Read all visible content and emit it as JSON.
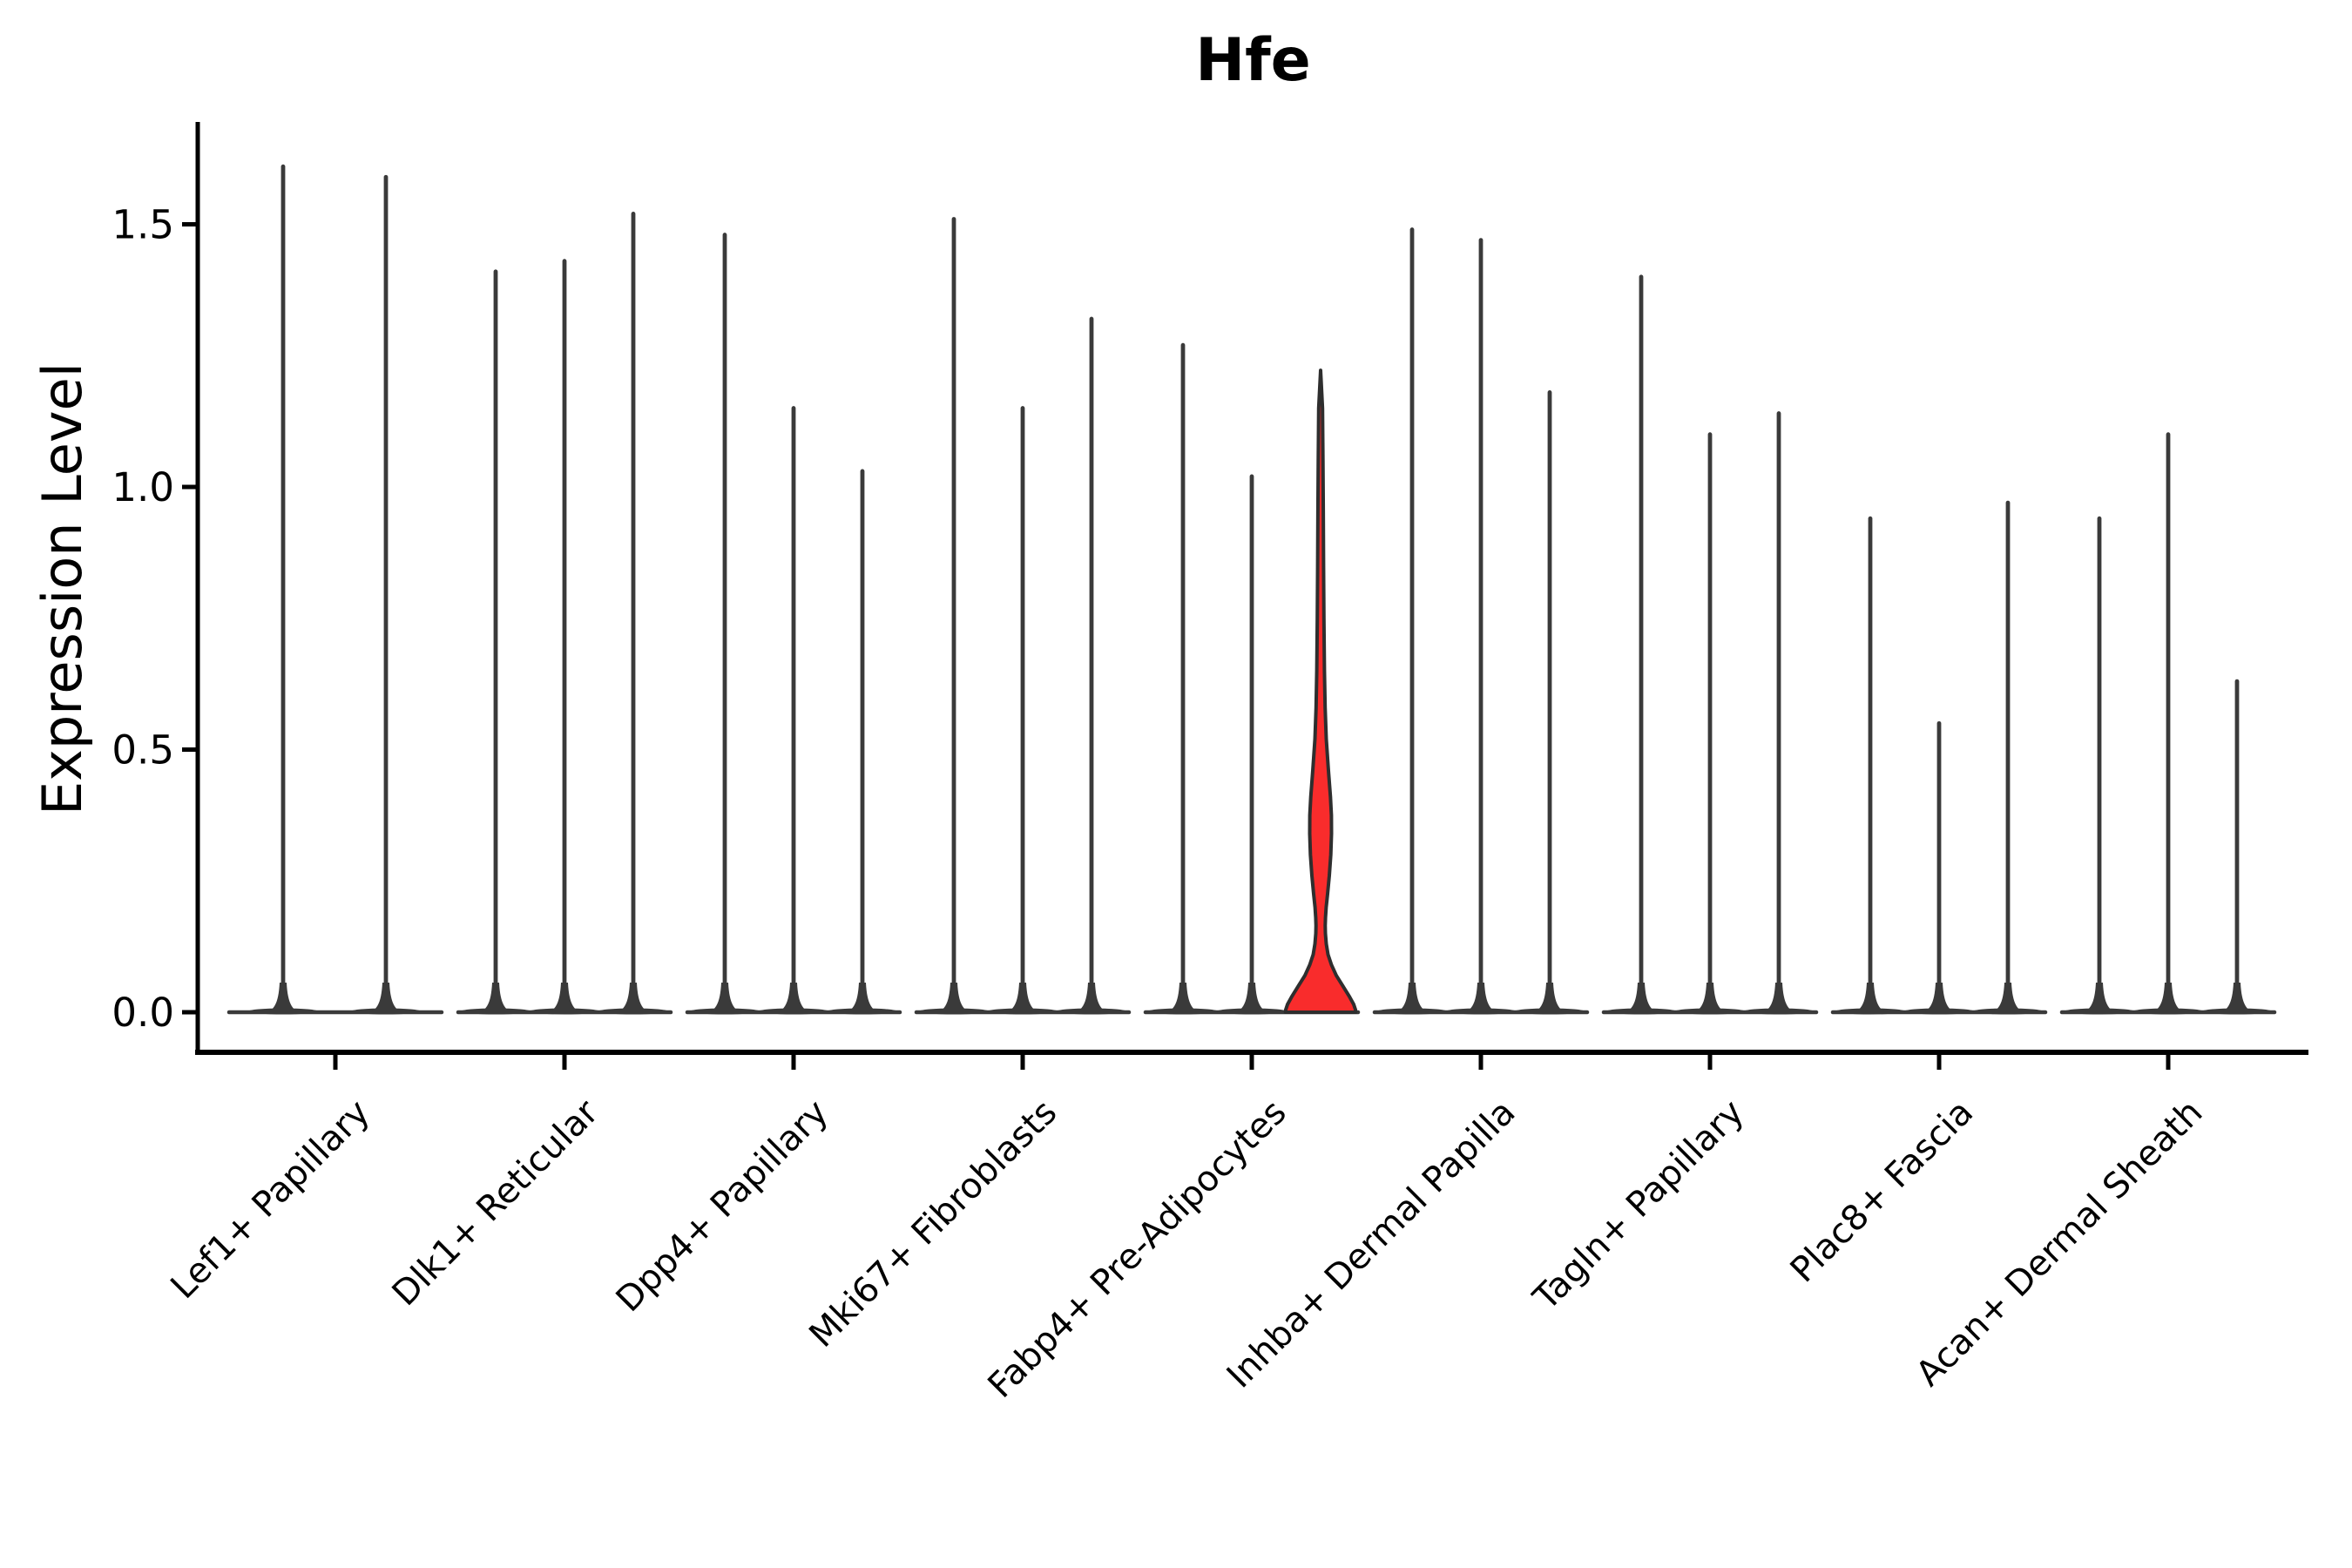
{
  "title": "Hfe",
  "y_axis": {
    "label": "Expression Level",
    "tick_labels": [
      "0.0",
      "0.5",
      "1.0",
      "1.5"
    ]
  },
  "colors": {
    "background": "#ffffff",
    "violin_line": "#3a3a3a",
    "spine": "#000000",
    "text": "#000000",
    "highlight_fill": "#f92c2c",
    "highlight_edge": "#2e2e2e"
  },
  "chart_data": {
    "type": "violin",
    "title": "Hfe",
    "ylabel": "Expression Level",
    "yticks": [
      0.0,
      0.5,
      1.0,
      1.5
    ],
    "ylim": [
      -0.08,
      1.69
    ],
    "grid": false,
    "legend": "none",
    "categories": [
      "Lef1+ Papillary",
      "Dlk1+ Reticular",
      "Dpp4+ Papillary",
      "Mki67+ Fibroblasts",
      "Fabp4+ Pre-Adipocytes",
      "Inhba+ Dermal Papilla",
      "Tagln+ Papillary",
      "Plac8+ Fascia",
      "Acan+ Dermal Sheath"
    ],
    "groups": [
      {
        "category": "Lef1+ Papillary",
        "violins": [
          {
            "max": 1.61
          },
          {
            "max": 1.59
          }
        ]
      },
      {
        "category": "Dlk1+ Reticular",
        "violins": [
          {
            "max": 1.41
          },
          {
            "max": 1.43
          },
          {
            "max": 1.52
          }
        ]
      },
      {
        "category": "Dpp4+ Papillary",
        "violins": [
          {
            "max": 1.48
          },
          {
            "max": 1.15
          },
          {
            "max": 1.03
          }
        ]
      },
      {
        "category": "Mki67+ Fibroblasts",
        "violins": [
          {
            "max": 1.51
          },
          {
            "max": 1.15
          },
          {
            "max": 1.32
          }
        ]
      },
      {
        "category": "Fabp4+ Pre-Adipocytes",
        "violins": [
          {
            "max": 1.27
          },
          {
            "max": 1.02
          },
          {
            "max": 1.22,
            "highlighted": true
          }
        ]
      },
      {
        "category": "Inhba+ Dermal Papilla",
        "violins": [
          {
            "max": 1.49
          },
          {
            "max": 1.47
          },
          {
            "max": 1.18
          }
        ]
      },
      {
        "category": "Tagln+ Papillary",
        "violins": [
          {
            "max": 1.4
          },
          {
            "max": 1.1
          },
          {
            "max": 1.14
          }
        ]
      },
      {
        "category": "Plac8+ Fascia",
        "violins": [
          {
            "max": 0.94
          },
          {
            "max": 0.55
          },
          {
            "max": 0.97
          }
        ]
      },
      {
        "category": "Acan+ Dermal Sheath",
        "violins": [
          {
            "max": 0.94
          },
          {
            "max": 1.1
          },
          {
            "max": 0.63
          }
        ]
      }
    ],
    "highlighted_violin": {
      "category": "Fabp4+ Pre-Adipocytes",
      "max": 1.22,
      "profile": [
        [
          1.222,
          1.6
        ],
        [
          1.15,
          2.2
        ],
        [
          1.05,
          2.7
        ],
        [
          0.95,
          3.1
        ],
        [
          0.85,
          3.4
        ],
        [
          0.75,
          3.8
        ],
        [
          0.65,
          4.4
        ],
        [
          0.58,
          5.2
        ],
        [
          0.52,
          6.5
        ],
        [
          0.46,
          9.0
        ],
        [
          0.41,
          11.3
        ],
        [
          0.375,
          12.4
        ],
        [
          0.34,
          12.5
        ],
        [
          0.3,
          11.7
        ],
        [
          0.26,
          10.0
        ],
        [
          0.225,
          8.0
        ],
        [
          0.2,
          6.4
        ],
        [
          0.18,
          5.6
        ],
        [
          0.165,
          5.3
        ],
        [
          0.15,
          5.5
        ],
        [
          0.13,
          6.5
        ],
        [
          0.11,
          8.5
        ],
        [
          0.09,
          12.5
        ],
        [
          0.07,
          18.0
        ],
        [
          0.05,
          25.5
        ],
        [
          0.03,
          33.0
        ],
        [
          0.015,
          38.0
        ],
        [
          0.005,
          40.0
        ],
        [
          0.0,
          40.2
        ]
      ]
    }
  }
}
